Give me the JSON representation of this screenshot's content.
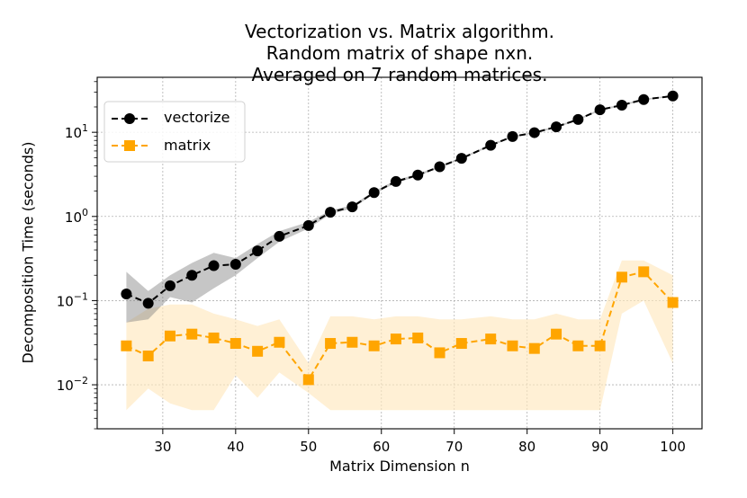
{
  "chart_data": {
    "type": "line",
    "title": [
      "Vectorization vs. Matrix algorithm.",
      "Random matrix of shape nxn.",
      "Averaged on 7 random matrices."
    ],
    "xlabel": "Matrix Dimension n",
    "ylabel": "Decomposition Time (seconds)",
    "yscale": "log",
    "xlim": [
      21,
      104
    ],
    "ylim": [
      0.003,
      45
    ],
    "x_ticks": [
      30,
      40,
      50,
      60,
      70,
      80,
      90,
      100
    ],
    "x_tick_labels": [
      "30",
      "40",
      "50",
      "60",
      "70",
      "80",
      "90",
      "100"
    ],
    "y_ticks": [
      0.01,
      0.1,
      1,
      10
    ],
    "y_tick_labels": [
      {
        "base": "10",
        "exp": "−2"
      },
      {
        "base": "10",
        "exp": "−1"
      },
      {
        "base": "10",
        "exp": "0"
      },
      {
        "base": "10",
        "exp": "1"
      }
    ],
    "grid": true,
    "legend_position": "top-left",
    "x": [
      25,
      28,
      31,
      34,
      37,
      40,
      43,
      46,
      50,
      53,
      56,
      59,
      62,
      65,
      68,
      71,
      75,
      78,
      81,
      84,
      87,
      90,
      93,
      96,
      100
    ],
    "series": [
      {
        "name": "vectorize",
        "color": "#000000",
        "band_color": "#808080",
        "marker": "circle",
        "values": [
          0.12,
          0.093,
          0.15,
          0.2,
          0.26,
          0.27,
          0.39,
          0.58,
          0.78,
          1.12,
          1.3,
          1.92,
          2.6,
          3.1,
          3.9,
          4.9,
          7.0,
          8.9,
          9.9,
          11.6,
          14.2,
          18.5,
          21.0,
          24.5,
          27.0
        ],
        "band_low": [
          0.055,
          0.06,
          0.11,
          0.095,
          0.14,
          0.2,
          0.32,
          0.5,
          0.72,
          1.06,
          1.25,
          1.85,
          2.5,
          3.0,
          3.8,
          4.8,
          6.8,
          8.7,
          9.7,
          11.3,
          13.9,
          18.0,
          20.5,
          24.0,
          26.5
        ],
        "band_high": [
          0.22,
          0.13,
          0.2,
          0.28,
          0.37,
          0.32,
          0.47,
          0.67,
          0.86,
          1.18,
          1.36,
          2.0,
          2.7,
          3.2,
          4.0,
          5.0,
          7.2,
          9.1,
          10.1,
          11.9,
          14.5,
          19.0,
          21.5,
          25.0,
          27.5
        ]
      },
      {
        "name": "matrix",
        "color": "#FFA500",
        "band_color": "#FFE8BF",
        "marker": "square",
        "values": [
          0.029,
          0.022,
          0.038,
          0.04,
          0.036,
          0.031,
          0.025,
          0.032,
          0.0115,
          0.031,
          0.032,
          0.029,
          0.035,
          0.036,
          0.024,
          0.031,
          0.035,
          0.029,
          0.027,
          0.04,
          0.029,
          0.029,
          0.19,
          0.22,
          0.095
        ],
        "band_low": [
          0.005,
          0.009,
          0.006,
          0.005,
          0.005,
          0.013,
          0.007,
          0.014,
          0.008,
          0.005,
          0.005,
          0.005,
          0.005,
          0.005,
          0.005,
          0.005,
          0.005,
          0.005,
          0.005,
          0.005,
          0.005,
          0.005,
          0.07,
          0.1,
          0.018
        ],
        "band_high": [
          0.055,
          0.08,
          0.09,
          0.09,
          0.07,
          0.06,
          0.05,
          0.06,
          0.018,
          0.065,
          0.065,
          0.06,
          0.065,
          0.065,
          0.06,
          0.06,
          0.065,
          0.06,
          0.06,
          0.07,
          0.06,
          0.06,
          0.3,
          0.3,
          0.2
        ]
      }
    ]
  }
}
